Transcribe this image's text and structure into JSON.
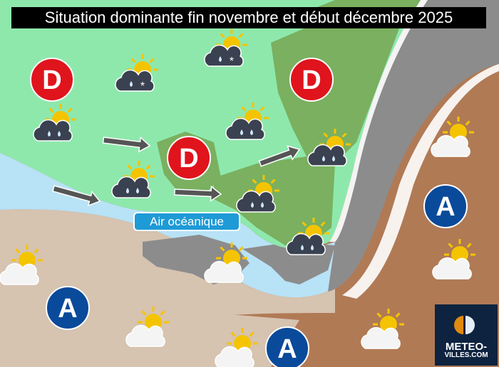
{
  "title": "Situation dominante fin novembre et début décembre 2025",
  "zone_label": "Air océanique",
  "pressure_systems": {
    "low_letter": "D",
    "high_letter": "A",
    "low_color": "#e0141c",
    "high_color": "#0a4a9a"
  },
  "zone_colors": {
    "disturbed": "#8ee8ac",
    "oceanic": "#b8e2f6",
    "high_pressure_sea": "#d6c3b0",
    "continental": "#b07a55",
    "transition": "#8c8c8c"
  },
  "logo": {
    "line1": "METEO-",
    "line2": "VILLES.COM"
  },
  "icons": [
    "rain-cloud-icon",
    "snow-rain-cloud-icon",
    "sun-cloud-icon",
    "wind-arrow-icon"
  ]
}
